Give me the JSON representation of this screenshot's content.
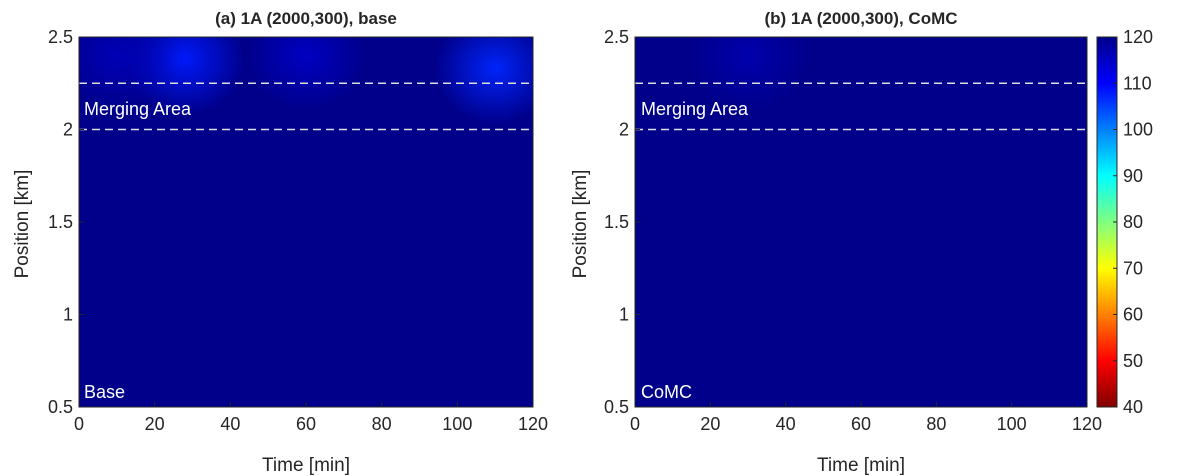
{
  "chart_data": [
    {
      "type": "heatmap",
      "title": "(a) 1A (2000,300), base",
      "xlabel": "Time [min]",
      "ylabel": "Position [km]",
      "xlim": [
        0,
        120
      ],
      "ylim": [
        0.5,
        2.5
      ],
      "xticks": [
        "0",
        "20",
        "40",
        "60",
        "80",
        "100",
        "120"
      ],
      "yticks": [
        "0.5",
        "1",
        "1.5",
        "2",
        "2.5"
      ],
      "merging_area": {
        "label": "Merging Area",
        "bounds_km": [
          2.0,
          2.25
        ],
        "line_style": "dashed",
        "color": "#dddddd"
      },
      "corner_label": "Base",
      "background_value": 120,
      "hotspots": [
        {
          "x": 28,
          "y": 2.38,
          "value": 108
        },
        {
          "x": 110,
          "y": 2.33,
          "value": 107
        },
        {
          "x": 60,
          "y": 2.4,
          "value": 115
        },
        {
          "x": 10,
          "y": 2.4,
          "value": 116
        }
      ]
    },
    {
      "type": "heatmap",
      "title": "(b) 1A (2000,300), CoMC",
      "xlabel": "Time [min]",
      "ylabel": "Position [km]",
      "xlim": [
        0,
        120
      ],
      "ylim": [
        0.5,
        2.5
      ],
      "xticks": [
        "0",
        "20",
        "40",
        "60",
        "80",
        "100",
        "120"
      ],
      "yticks": [
        "0.5",
        "1",
        "1.5",
        "2",
        "2.5"
      ],
      "merging_area": {
        "label": "Merging Area",
        "bounds_km": [
          2.0,
          2.25
        ],
        "line_style": "dashed",
        "color": "#dddddd"
      },
      "corner_label": "CoMC",
      "background_value": 120,
      "hotspots": [
        {
          "x": 30,
          "y": 2.4,
          "value": 117
        }
      ]
    }
  ],
  "colorbar": {
    "ticks": [
      "120",
      "110",
      "100",
      "90",
      "80",
      "70",
      "60",
      "50",
      "40"
    ],
    "range": [
      40,
      120
    ],
    "colormap": "jet-reversed",
    "colors": [
      "#800000",
      "#ff0000",
      "#ff8000",
      "#ffff00",
      "#80ff80",
      "#00ffff",
      "#0080ff",
      "#0000ff",
      "#00008b"
    ]
  }
}
